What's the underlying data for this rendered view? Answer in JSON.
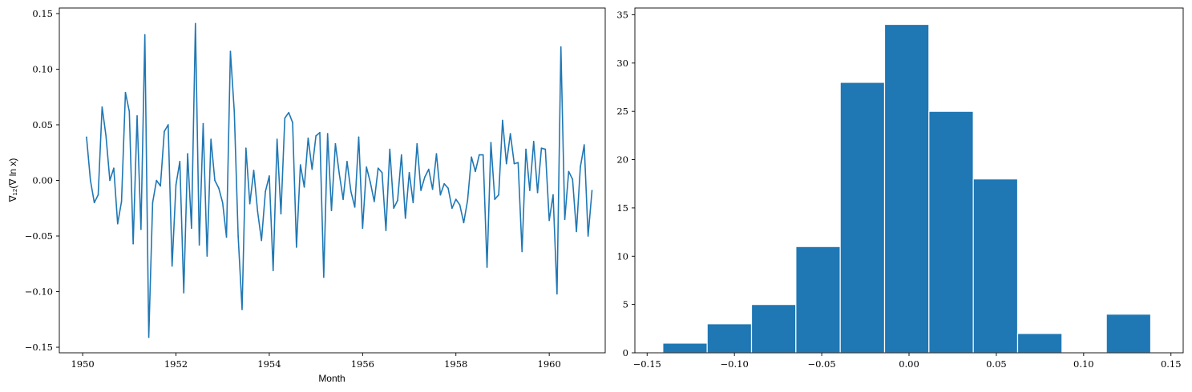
{
  "chart_data": [
    {
      "type": "line",
      "xlabel": "Month",
      "ylabel": "∇₁₂(∇ ln x)",
      "xlim": [
        1949.5,
        1961.2
      ],
      "ylim": [
        -0.155,
        0.155
      ],
      "xticks": [
        1950,
        1952,
        1954,
        1956,
        1958,
        1960
      ],
      "xtick_labels": [
        "1950",
        "1952",
        "1954",
        "1956",
        "1958",
        "1960"
      ],
      "yticks": [
        -0.15,
        -0.1,
        -0.05,
        0.0,
        0.05,
        0.1,
        0.15
      ],
      "ytick_labels": [
        "−0.15",
        "−0.10",
        "−0.05",
        "0.00",
        "0.05",
        "0.10",
        "0.15"
      ],
      "grid": false,
      "color": "#1f77b4",
      "x": [
        1950.083,
        1950.167,
        1950.25,
        1950.333,
        1950.417,
        1950.5,
        1950.583,
        1950.667,
        1950.75,
        1950.833,
        1950.917,
        1951.0,
        1951.083,
        1951.167,
        1951.25,
        1951.333,
        1951.417,
        1951.5,
        1951.583,
        1951.667,
        1951.75,
        1951.833,
        1951.917,
        1952.0,
        1952.083,
        1952.167,
        1952.25,
        1952.333,
        1952.417,
        1952.5,
        1952.583,
        1952.667,
        1952.75,
        1952.833,
        1952.917,
        1953.0,
        1953.083,
        1953.167,
        1953.25,
        1953.333,
        1953.417,
        1953.5,
        1953.583,
        1953.667,
        1953.75,
        1953.833,
        1953.917,
        1954.0,
        1954.083,
        1954.167,
        1954.25,
        1954.333,
        1954.417,
        1954.5,
        1954.583,
        1954.667,
        1954.75,
        1954.833,
        1954.917,
        1955.0,
        1955.083,
        1955.167,
        1955.25,
        1955.333,
        1955.417,
        1955.5,
        1955.583,
        1955.667,
        1955.75,
        1955.833,
        1955.917,
        1956.0,
        1956.083,
        1956.167,
        1956.25,
        1956.333,
        1956.417,
        1956.5,
        1956.583,
        1956.667,
        1956.75,
        1956.833,
        1956.917,
        1957.0,
        1957.083,
        1957.167,
        1957.25,
        1957.333,
        1957.417,
        1957.5,
        1957.583,
        1957.667,
        1957.75,
        1957.833,
        1957.917,
        1958.0,
        1958.083,
        1958.167,
        1958.25,
        1958.333,
        1958.417,
        1958.5,
        1958.583,
        1958.667,
        1958.75,
        1958.833,
        1958.917,
        1959.0,
        1959.083,
        1959.167,
        1959.25,
        1959.333,
        1959.417,
        1959.5,
        1959.583,
        1959.667,
        1959.75,
        1959.833,
        1959.917,
        1960.0,
        1960.083,
        1960.167,
        1960.25,
        1960.333,
        1960.417,
        1960.5,
        1960.583,
        1960.667,
        1960.75,
        1960.833,
        1960.917
      ],
      "y": [
        0.039,
        0.0,
        -0.02,
        -0.013,
        0.066,
        0.04,
        0.0,
        0.011,
        -0.039,
        -0.019,
        0.079,
        0.062,
        -0.057,
        0.058,
        -0.044,
        0.131,
        -0.141,
        -0.02,
        0.0,
        -0.005,
        0.044,
        0.05,
        -0.077,
        -0.004,
        0.017,
        -0.101,
        0.024,
        -0.043,
        0.141,
        -0.058,
        0.051,
        -0.068,
        0.037,
        0.0,
        -0.007,
        -0.02,
        -0.051,
        0.116,
        0.062,
        -0.05,
        -0.116,
        0.029,
        -0.021,
        0.009,
        -0.028,
        -0.054,
        -0.01,
        0.004,
        -0.081,
        0.037,
        -0.03,
        0.056,
        0.061,
        0.052,
        -0.06,
        0.014,
        -0.006,
        0.038,
        0.01,
        0.04,
        0.043,
        -0.087,
        0.042,
        -0.027,
        0.033,
        0.006,
        -0.017,
        0.017,
        -0.01,
        -0.024,
        0.039,
        -0.043,
        0.012,
        -0.002,
        -0.019,
        0.011,
        0.007,
        -0.045,
        0.028,
        -0.025,
        -0.018,
        0.023,
        -0.034,
        0.007,
        -0.02,
        0.033,
        -0.009,
        0.003,
        0.01,
        -0.008,
        0.024,
        -0.013,
        -0.003,
        -0.007,
        -0.025,
        -0.017,
        -0.022,
        -0.038,
        -0.018,
        0.021,
        0.008,
        0.023,
        0.023,
        -0.078,
        0.034,
        -0.017,
        -0.013,
        0.054,
        0.015,
        0.042,
        0.015,
        0.016,
        -0.064,
        0.028,
        -0.009,
        0.035,
        -0.011,
        0.029,
        0.028,
        -0.036,
        -0.013,
        -0.102,
        0.12,
        -0.035,
        0.008,
        0.001,
        -0.046,
        0.012,
        0.032,
        -0.05,
        -0.009
      ]
    },
    {
      "type": "bar",
      "subtype": "histogram",
      "xlim": [
        -0.157,
        0.157
      ],
      "ylim": [
        0,
        35.7
      ],
      "xticks": [
        -0.15,
        -0.1,
        -0.05,
        0.0,
        0.05,
        0.1,
        0.15
      ],
      "xtick_labels": [
        "−0.15",
        "−0.10",
        "−0.05",
        "0.00",
        "0.05",
        "0.10",
        "0.15"
      ],
      "yticks": [
        0,
        5,
        10,
        15,
        20,
        25,
        30,
        35
      ],
      "ytick_labels": [
        "0",
        "5",
        "10",
        "15",
        "20",
        "25",
        "30",
        "35"
      ],
      "grid": false,
      "color": "#1f77b4",
      "edgecolor": "#ffffff",
      "bin_edges": [
        -0.141,
        -0.1156,
        -0.0902,
        -0.0648,
        -0.0394,
        -0.014,
        0.0114,
        0.0368,
        0.0622,
        0.0876,
        0.113,
        0.1384
      ],
      "values": [
        1,
        3,
        5,
        11,
        28,
        34,
        25,
        18,
        2,
        0,
        4
      ]
    }
  ]
}
